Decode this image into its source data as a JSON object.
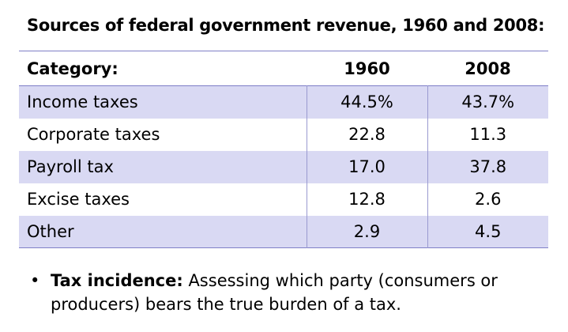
{
  "title": "Sources of federal government revenue, 1960 and 2008:",
  "table": {
    "headers": [
      "Category:",
      "1960",
      "2008"
    ],
    "rows": [
      {
        "category": "Income taxes",
        "y1960": "44.5%",
        "y2008": "43.7%"
      },
      {
        "category": "Corporate taxes",
        "y1960": "22.8",
        "y2008": "11.3"
      },
      {
        "category": "Payroll tax",
        "y1960": "17.0",
        "y2008": "37.8"
      },
      {
        "category": "Excise taxes",
        "y1960": "12.8",
        "y2008": "2.6"
      },
      {
        "category": "Other",
        "y1960": "2.9",
        "y2008": "4.5"
      }
    ]
  },
  "bullet": {
    "symbol": "•",
    "term": "Tax incidence:",
    "text": " Assessing which party (consumers or producers) bears the true burden of a tax."
  },
  "colors": {
    "shaded_row": "#d9d9f3",
    "rule": "#7f7fc7"
  }
}
